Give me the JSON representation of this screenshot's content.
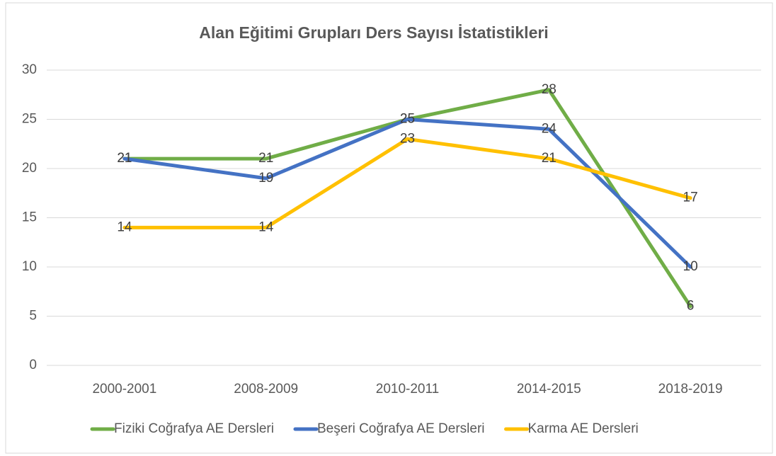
{
  "chart_data": {
    "type": "line",
    "title": "Alan Eğitimi Grupları Ders Sayısı İstatistikleri",
    "categories": [
      "2000-2001",
      "2008-2009",
      "2010-2011",
      "2014-2015",
      "2018-2019"
    ],
    "series": [
      {
        "name": "Fiziki Coğrafya AE Dersleri",
        "color": "#70ad47",
        "values": [
          21,
          21,
          25,
          28,
          6
        ]
      },
      {
        "name": "Beşeri Coğrafya AE Dersleri",
        "color": "#4472c4",
        "values": [
          21,
          19,
          25,
          24,
          10
        ]
      },
      {
        "name": "Karma AE Dersleri",
        "color": "#ffc000",
        "values": [
          14,
          14,
          23,
          21,
          17
        ]
      }
    ],
    "ylim": [
      0,
      30
    ],
    "yticks": [
      0,
      5,
      10,
      15,
      20,
      25,
      30
    ],
    "grid": true,
    "legend": "bottom"
  }
}
